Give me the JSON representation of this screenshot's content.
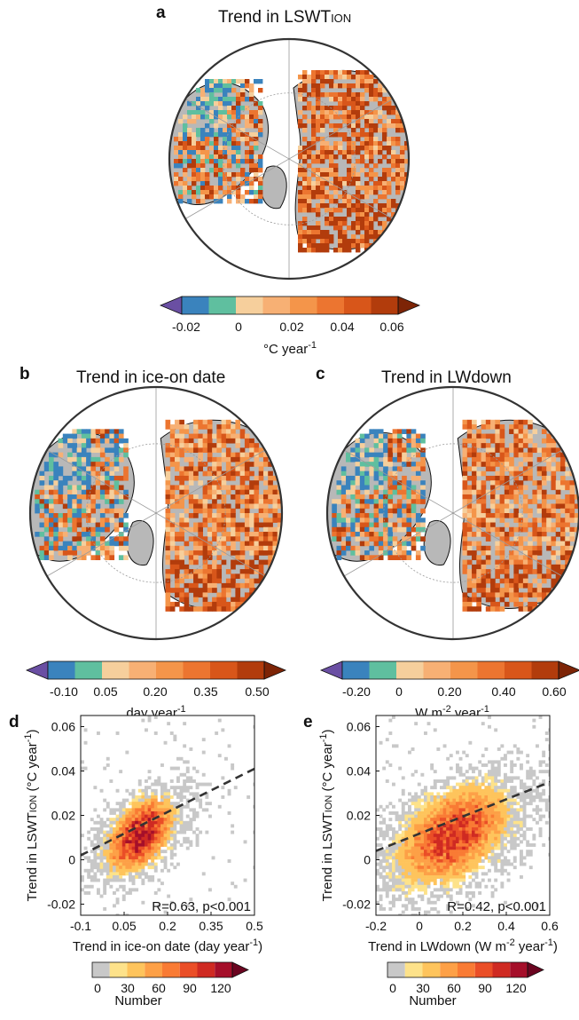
{
  "panels": {
    "a": {
      "label": "a",
      "title_main": "Trend in LSWT",
      "title_sub": "ION"
    },
    "b": {
      "label": "b",
      "title": "Trend in ice-on date"
    },
    "c": {
      "label": "c",
      "title": "Trend in LWdown"
    },
    "d": {
      "label": "d"
    },
    "e": {
      "label": "e"
    }
  },
  "colorbars": {
    "a": {
      "ticks": [
        "-0.02",
        "0",
        "0.02",
        "0.04",
        "0.06"
      ],
      "unit": "°C year",
      "unit_sup": "-1",
      "colors": [
        "#6a4fa3",
        "#3a83bd",
        "#5fbf9f",
        "#f6cf9c",
        "#f7b074",
        "#f4954a",
        "#ec7530",
        "#d8561a",
        "#b23c0c",
        "#7d2406"
      ]
    },
    "b": {
      "ticks": [
        "-0.10",
        "0.05",
        "0.20",
        "0.35",
        "0.50"
      ],
      "unit": "day year",
      "unit_sup": "-1",
      "colors": [
        "#6a4fa3",
        "#3a83bd",
        "#5fbf9f",
        "#f6cf9c",
        "#f7b074",
        "#f4954a",
        "#ec7530",
        "#d8561a",
        "#b23c0c",
        "#7d2406"
      ]
    },
    "c": {
      "ticks": [
        "-0.20",
        "0",
        "0.20",
        "0.40",
        "0.60"
      ],
      "unit": "W m",
      "unit_sup": "-2",
      "unit_tail": " year",
      "unit_sup2": "-1",
      "colors": [
        "#6a4fa3",
        "#3a83bd",
        "#5fbf9f",
        "#f6cf9c",
        "#f7b074",
        "#f4954a",
        "#ec7530",
        "#d8561a",
        "#b23c0c",
        "#7d2406"
      ]
    },
    "count": {
      "ticks": [
        "0",
        "30",
        "60",
        "90",
        "120"
      ],
      "label": "Number",
      "colors": [
        "#c8c8c8",
        "#fde28a",
        "#fec45c",
        "#fda047",
        "#f97b34",
        "#ea4e27",
        "#cf2a22",
        "#a50f2a",
        "#6b0520"
      ]
    }
  },
  "chart_data": [
    {
      "type": "heatmap",
      "panel": "d",
      "ylabel": "Trend in LSWT",
      "ylabel_sub": "ION",
      "ylabel_unit": " (°C year",
      "ylabel_sup": "-1",
      "xlabel": "Trend in ice-on date (day year",
      "xlabel_sup": "-1",
      "xticks": [
        "-0.1",
        "0.05",
        "0.2",
        "0.35",
        "0.5"
      ],
      "xtick_values": [
        -0.1,
        0.05,
        0.2,
        0.35,
        0.5
      ],
      "yticks": [
        "-0.02",
        "0",
        "0.02",
        "0.04",
        "0.06"
      ],
      "ytick_values": [
        -0.02,
        0,
        0.02,
        0.04,
        0.06
      ],
      "xlim": [
        -0.1,
        0.5
      ],
      "ylim": [
        -0.025,
        0.065
      ],
      "fit_line": {
        "x": [
          -0.1,
          0.5
        ],
        "y": [
          0.002,
          0.041
        ]
      },
      "annotation": "R=0.63, p<0.001",
      "density_centers": [
        {
          "x": 0.1,
          "y": 0.012,
          "peak": 120,
          "sx": 0.07,
          "sy": 0.009
        }
      ],
      "color_scale": "Number"
    },
    {
      "type": "heatmap",
      "panel": "e",
      "ylabel": "Trend in LSWT",
      "ylabel_sub": "ION",
      "ylabel_unit": " (°C year",
      "ylabel_sup": "-1",
      "xlabel": "Trend in LWdown (W m",
      "xlabel_sup": "-2",
      "xlabel_tail": " year",
      "xlabel_sup2": "-1",
      "xticks": [
        "-0.2",
        "0",
        "0.2",
        "0.4",
        "0.6"
      ],
      "xtick_values": [
        -0.2,
        0,
        0.2,
        0.4,
        0.6
      ],
      "yticks": [
        "-0.02",
        "0",
        "0.02",
        "0.04",
        "0.06"
      ],
      "ytick_values": [
        -0.02,
        0,
        0.02,
        0.04,
        0.06
      ],
      "xlim": [
        -0.2,
        0.6
      ],
      "ylim": [
        -0.025,
        0.065
      ],
      "fit_line": {
        "x": [
          -0.2,
          0.6
        ],
        "y": [
          0.004,
          0.035
        ]
      },
      "annotation": "R=0.42, p<0.001",
      "density_centers": [
        {
          "x": 0.15,
          "y": 0.012,
          "peak": 100,
          "sx": 0.15,
          "sy": 0.012
        }
      ],
      "color_scale": "Number"
    }
  ]
}
